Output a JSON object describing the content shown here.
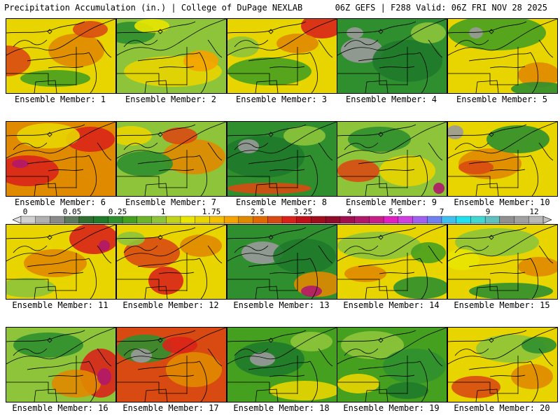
{
  "header": {
    "title_left": "Precipitation Accumulation (in.) | College of DuPage NEXLAB",
    "title_right": "06Z GEFS | F288 Valid: 06Z FRI NOV 28 2025"
  },
  "panels": [
    {
      "label": "Ensemble Member: 1",
      "base": "#e8d500",
      "blobs": [
        [
          "#d94a12",
          0,
          60,
          35,
          22
        ],
        [
          "#e08a00",
          100,
          45,
          40,
          24
        ],
        [
          "#46a020",
          70,
          85,
          50,
          12
        ],
        [
          "#d94a12",
          120,
          15,
          25,
          12
        ]
      ]
    },
    {
      "label": "Ensemble Member: 2",
      "base": "#8dc43a",
      "blobs": [
        [
          "#e8d500",
          80,
          75,
          70,
          22
        ],
        [
          "#f5a300",
          120,
          60,
          25,
          15
        ],
        [
          "#2f8f2f",
          20,
          20,
          35,
          16
        ],
        [
          "#e8e600",
          50,
          10,
          25,
          10
        ]
      ]
    },
    {
      "label": "Ensemble Member: 3",
      "base": "#e8d500",
      "blobs": [
        [
          "#d9231a",
          135,
          10,
          30,
          18
        ],
        [
          "#46a020",
          60,
          75,
          60,
          20
        ],
        [
          "#e08a00",
          100,
          35,
          30,
          14
        ],
        [
          "#8dc43a",
          20,
          40,
          25,
          15
        ]
      ]
    },
    {
      "label": "Ensemble Member: 4",
      "base": "#2f8f2f",
      "blobs": [
        [
          "#9a9a9a",
          35,
          45,
          30,
          18
        ],
        [
          "#1f7a2a",
          100,
          60,
          50,
          30
        ],
        [
          "#8dc43a",
          130,
          20,
          25,
          15
        ],
        [
          "#9a9a9a",
          25,
          20,
          12,
          8
        ]
      ]
    },
    {
      "label": "Ensemble Member: 5",
      "base": "#e8d500",
      "blobs": [
        [
          "#46a020",
          70,
          20,
          70,
          25
        ],
        [
          "#e08a00",
          130,
          80,
          30,
          18
        ],
        [
          "#2f8f2f",
          130,
          100,
          40,
          10
        ],
        [
          "#9a9a9a",
          40,
          20,
          10,
          8
        ]
      ]
    },
    {
      "label": "Ensemble Member: 6",
      "base": "#e08a00",
      "blobs": [
        [
          "#d9231a",
          30,
          70,
          45,
          22
        ],
        [
          "#d9231a",
          120,
          25,
          35,
          18
        ],
        [
          "#e8d500",
          60,
          20,
          45,
          18
        ],
        [
          "#b0186a",
          20,
          60,
          12,
          6
        ]
      ]
    },
    {
      "label": "Ensemble Member: 7",
      "base": "#8dc43a",
      "blobs": [
        [
          "#e08a00",
          110,
          50,
          45,
          25
        ],
        [
          "#d94a12",
          90,
          20,
          25,
          12
        ],
        [
          "#2f8f2f",
          40,
          60,
          40,
          18
        ],
        [
          "#e8d500",
          20,
          20,
          30,
          14
        ]
      ]
    },
    {
      "label": "Ensemble Member: 8",
      "base": "#2f8f2f",
      "blobs": [
        [
          "#1f7a2a",
          50,
          50,
          60,
          30
        ],
        [
          "#8dc43a",
          110,
          20,
          30,
          14
        ],
        [
          "#d94a12",
          60,
          95,
          60,
          8
        ],
        [
          "#9a9a9a",
          30,
          35,
          15,
          10
        ]
      ]
    },
    {
      "label": "Ensemble Member: 9",
      "base": "#8dc43a",
      "blobs": [
        [
          "#d94a12",
          30,
          70,
          30,
          16
        ],
        [
          "#e8d500",
          100,
          70,
          40,
          22
        ],
        [
          "#2f8f2f",
          60,
          25,
          45,
          18
        ],
        [
          "#b0186a",
          145,
          95,
          8,
          8
        ]
      ]
    },
    {
      "label": "Ensemble Member: 10",
      "base": "#e8d500",
      "blobs": [
        [
          "#e08a00",
          60,
          60,
          45,
          22
        ],
        [
          "#2f8f2f",
          100,
          25,
          45,
          20
        ],
        [
          "#d94a12",
          40,
          65,
          25,
          10
        ],
        [
          "#9a9a9a",
          10,
          15,
          12,
          10
        ]
      ]
    },
    {
      "label": "Ensemble Member: 11",
      "base": "#e8d500",
      "blobs": [
        [
          "#d9231a",
          125,
          20,
          35,
          22
        ],
        [
          "#e08a00",
          70,
          55,
          45,
          20
        ],
        [
          "#8dc43a",
          30,
          90,
          40,
          14
        ],
        [
          "#b0186a",
          140,
          30,
          8,
          8
        ]
      ]
    },
    {
      "label": "Ensemble Member: 12",
      "base": "#e8d500",
      "blobs": [
        [
          "#d94a12",
          50,
          40,
          40,
          22
        ],
        [
          "#d9231a",
          70,
          80,
          25,
          20
        ],
        [
          "#e08a00",
          120,
          30,
          30,
          16
        ],
        [
          "#8dc43a",
          20,
          20,
          20,
          10
        ]
      ]
    },
    {
      "label": "Ensemble Member: 13",
      "base": "#2f8f2f",
      "blobs": [
        [
          "#9a9a9a",
          50,
          40,
          30,
          16
        ],
        [
          "#1f7a2a",
          110,
          45,
          45,
          25
        ],
        [
          "#e08a00",
          130,
          85,
          35,
          18
        ],
        [
          "#b0186a",
          120,
          95,
          15,
          8
        ]
      ]
    },
    {
      "label": "Ensemble Member: 14",
      "base": "#e8d500",
      "blobs": [
        [
          "#8dc43a",
          60,
          30,
          60,
          20
        ],
        [
          "#2f8f2f",
          120,
          90,
          40,
          16
        ],
        [
          "#e08a00",
          40,
          70,
          30,
          12
        ],
        [
          "#46a020",
          130,
          40,
          25,
          15
        ]
      ]
    },
    {
      "label": "Ensemble Member: 15",
      "base": "#e8d500",
      "blobs": [
        [
          "#8dc43a",
          70,
          25,
          60,
          20
        ],
        [
          "#2f8f2f",
          90,
          95,
          60,
          12
        ],
        [
          "#e08a00",
          130,
          60,
          30,
          14
        ],
        [
          "#e8e600",
          20,
          50,
          25,
          15
        ]
      ]
    },
    {
      "label": "Ensemble Member: 16",
      "base": "#8dc43a",
      "blobs": [
        [
          "#d9231a",
          135,
          65,
          30,
          35
        ],
        [
          "#e08a00",
          100,
          80,
          35,
          20
        ],
        [
          "#2f8f2f",
          60,
          25,
          50,
          18
        ],
        [
          "#b0186a",
          140,
          70,
          10,
          12
        ]
      ]
    },
    {
      "label": "Ensemble Member: 17",
      "base": "#d94a12",
      "blobs": [
        [
          "#2f8f2f",
          40,
          30,
          40,
          20
        ],
        [
          "#9a9a9a",
          35,
          40,
          15,
          10
        ],
        [
          "#e08a00",
          110,
          60,
          40,
          25
        ],
        [
          "#d9231a",
          90,
          25,
          25,
          12
        ]
      ]
    },
    {
      "label": "Ensemble Member: 18",
      "base": "#46a020",
      "blobs": [
        [
          "#1f7a2a",
          60,
          45,
          50,
          25
        ],
        [
          "#9a9a9a",
          50,
          45,
          18,
          10
        ],
        [
          "#e8d500",
          110,
          90,
          50,
          14
        ],
        [
          "#8dc43a",
          120,
          20,
          30,
          14
        ]
      ]
    },
    {
      "label": "Ensemble Member: 19",
      "base": "#46a020",
      "blobs": [
        [
          "#8dc43a",
          50,
          25,
          45,
          20
        ],
        [
          "#2f8f2f",
          110,
          55,
          45,
          25
        ],
        [
          "#e8d500",
          30,
          80,
          30,
          14
        ],
        [
          "#1f7a2a",
          100,
          90,
          30,
          12
        ]
      ]
    },
    {
      "label": "Ensemble Member: 20",
      "base": "#e8d500",
      "blobs": [
        [
          "#d94a12",
          40,
          85,
          35,
          16
        ],
        [
          "#8dc43a",
          90,
          30,
          50,
          20
        ],
        [
          "#e08a00",
          120,
          70,
          30,
          18
        ],
        [
          "#2f8f2f",
          130,
          25,
          25,
          12
        ]
      ]
    }
  ],
  "colorbar": {
    "colors": [
      "#d0d0d0",
      "#b0b0b0",
      "#8a8a8a",
      "#5e7a5e",
      "#2e6e2e",
      "#1f7a2a",
      "#2f8f2f",
      "#46a020",
      "#6cb42a",
      "#8dc43a",
      "#c0d41a",
      "#e8e600",
      "#e8d500",
      "#f5c000",
      "#f5a300",
      "#e08a00",
      "#e06a00",
      "#d94a12",
      "#d9231a",
      "#c0101a",
      "#a00e1e",
      "#900a2a",
      "#a01050",
      "#b0186a",
      "#c81e88",
      "#e020c0",
      "#d040e0",
      "#a060f0",
      "#7080f0",
      "#40c0f0",
      "#20e0f0",
      "#40d8d0",
      "#60c0c0",
      "#909090",
      "#a0a0a0",
      "#b8b8b8"
    ],
    "tick_labels": [
      "0",
      "0.05",
      "0.25",
      "1",
      "1.75",
      "2.5",
      "3.25",
      "4",
      "5.5",
      "7",
      "9",
      "12"
    ]
  }
}
